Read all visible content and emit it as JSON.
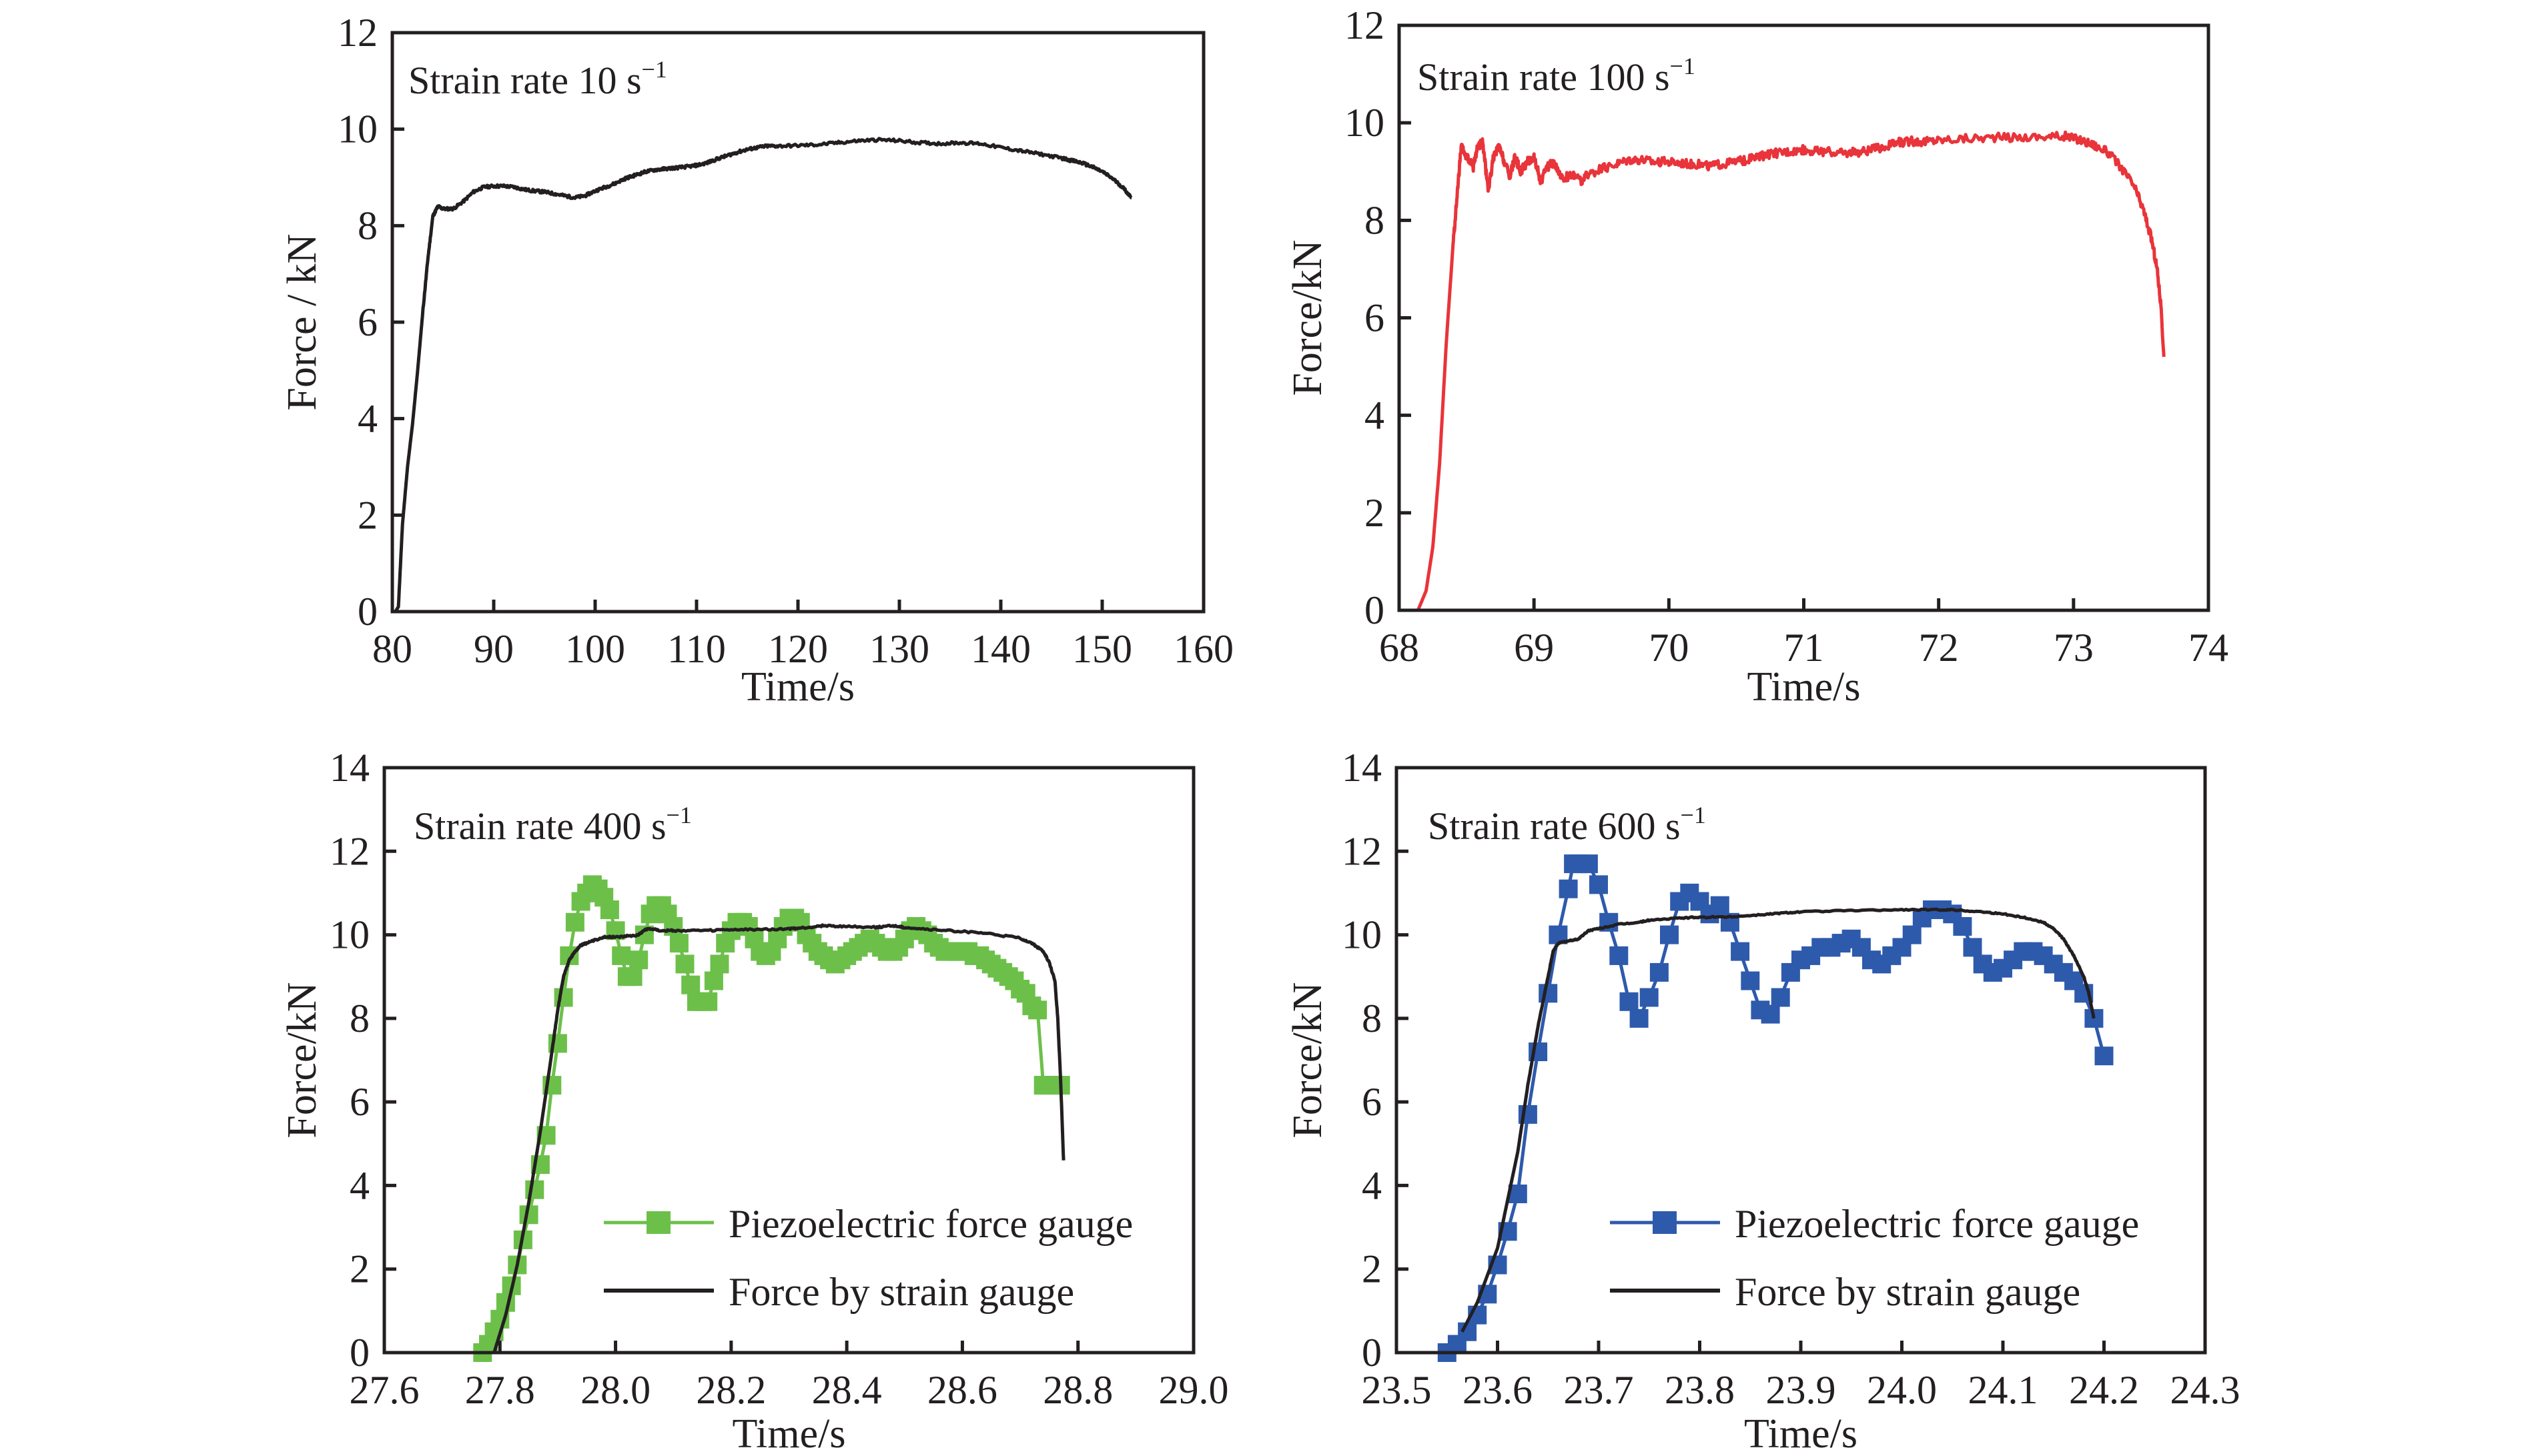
{
  "colors": {
    "axis": "#231f20",
    "black_series": "#231f20",
    "red_series": "#e8343a",
    "green_series": "#6cc04a",
    "blue_series": "#2e5aac"
  },
  "chart_data": [
    {
      "type": "line",
      "panel": "top-left",
      "annotation": "Strain rate 10 s",
      "annotation_sup": "−1",
      "xlabel": "Time/s",
      "ylabel": "Force / kN",
      "xlim": [
        80,
        160
      ],
      "ylim": [
        0,
        12
      ],
      "xticks": [
        "80",
        "90",
        "100",
        "110",
        "120",
        "130",
        "140",
        "150",
        "160"
      ],
      "xtick_values": [
        80,
        90,
        100,
        110,
        120,
        130,
        140,
        150,
        160
      ],
      "yticks": [
        "0",
        "2",
        "4",
        "6",
        "8",
        "10",
        "12"
      ],
      "ytick_values": [
        0,
        2,
        4,
        6,
        8,
        10,
        12
      ],
      "grid": false,
      "series": [
        {
          "name": "Force",
          "color": "black_series",
          "noise": 0.03,
          "x": [
            80.3,
            80.6,
            81.0,
            81.5,
            82.0,
            82.5,
            83.0,
            83.5,
            84.0,
            84.5,
            85.0,
            86.0,
            87.0,
            88.0,
            89.0,
            90.0,
            91.0,
            92.0,
            93.0,
            94.0,
            95.0,
            96.0,
            97.0,
            98.0,
            99.0,
            100.0,
            101.0,
            102.0,
            103.0,
            104.0,
            105.0,
            106.0,
            107.0,
            108.0,
            109.0,
            110.0,
            111.0,
            112.0,
            113.0,
            114.0,
            115.0,
            116.0,
            117.0,
            118.0,
            120.0,
            122.0,
            124.0,
            126.0,
            128.0,
            130.0,
            132.0,
            134.0,
            136.0,
            138.0,
            140.0,
            142.0,
            144.0,
            146.0,
            147.0,
            148.0,
            149.0,
            150.0,
            151.0,
            152.0,
            152.9
          ],
          "y": [
            0.0,
            0.1,
            1.8,
            3.0,
            3.9,
            5.0,
            6.2,
            7.3,
            8.2,
            8.4,
            8.35,
            8.35,
            8.5,
            8.7,
            8.8,
            8.82,
            8.82,
            8.8,
            8.75,
            8.72,
            8.7,
            8.66,
            8.62,
            8.58,
            8.62,
            8.72,
            8.8,
            8.88,
            8.98,
            9.05,
            9.12,
            9.16,
            9.18,
            9.2,
            9.22,
            9.25,
            9.3,
            9.38,
            9.45,
            9.52,
            9.58,
            9.62,
            9.65,
            9.65,
            9.66,
            9.68,
            9.72,
            9.76,
            9.78,
            9.76,
            9.72,
            9.7,
            9.72,
            9.7,
            9.62,
            9.55,
            9.48,
            9.4,
            9.35,
            9.3,
            9.22,
            9.12,
            8.98,
            8.8,
            8.58
          ]
        }
      ]
    },
    {
      "type": "line",
      "panel": "top-right",
      "annotation": "Strain rate 100 s",
      "annotation_sup": "−1",
      "xlabel": "Time/s",
      "ylabel": "Force/kN",
      "xlim": [
        68,
        74
      ],
      "ylim": [
        0,
        12
      ],
      "xticks": [
        "68",
        "69",
        "70",
        "71",
        "72",
        "73",
        "74"
      ],
      "xtick_values": [
        68,
        69,
        70,
        71,
        72,
        73,
        74
      ],
      "yticks": [
        "0",
        "2",
        "4",
        "6",
        "8",
        "10",
        "12"
      ],
      "ytick_values": [
        0,
        2,
        4,
        6,
        8,
        10,
        12
      ],
      "grid": false,
      "series": [
        {
          "name": "Force",
          "color": "red_series",
          "noise": 0.09,
          "x": [
            68.14,
            68.2,
            68.25,
            68.3,
            68.35,
            68.4,
            68.43,
            68.46,
            68.5,
            68.55,
            68.58,
            68.62,
            68.66,
            68.7,
            68.74,
            68.78,
            68.82,
            68.86,
            68.9,
            68.95,
            69.0,
            69.05,
            69.1,
            69.15,
            69.2,
            69.25,
            69.3,
            69.35,
            69.4,
            69.5,
            69.6,
            69.7,
            69.8,
            69.9,
            70.0,
            70.1,
            70.2,
            70.3,
            70.4,
            70.5,
            70.6,
            70.7,
            70.8,
            70.9,
            71.0,
            71.1,
            71.2,
            71.3,
            71.4,
            71.5,
            71.6,
            71.7,
            71.8,
            71.9,
            72.0,
            72.2,
            72.4,
            72.6,
            72.8,
            72.95,
            73.05,
            73.15,
            73.25,
            73.35,
            73.45,
            73.52,
            73.58,
            73.62,
            73.65,
            73.66,
            73.67
          ],
          "y": [
            0.0,
            0.4,
            1.3,
            3.0,
            5.5,
            7.5,
            8.5,
            9.5,
            9.3,
            9.1,
            9.5,
            9.6,
            8.6,
            9.3,
            9.5,
            9.2,
            8.9,
            9.3,
            9.0,
            9.2,
            9.3,
            8.8,
            9.1,
            9.2,
            8.85,
            8.9,
            8.95,
            8.8,
            8.95,
            9.05,
            9.15,
            9.25,
            9.25,
            9.2,
            9.2,
            9.18,
            9.15,
            9.12,
            9.15,
            9.2,
            9.25,
            9.32,
            9.38,
            9.42,
            9.45,
            9.42,
            9.4,
            9.38,
            9.4,
            9.45,
            9.5,
            9.6,
            9.62,
            9.62,
            9.65,
            9.68,
            9.7,
            9.7,
            9.72,
            9.72,
            9.65,
            9.55,
            9.4,
            9.1,
            8.7,
            8.2,
            7.6,
            7.0,
            6.2,
            5.6,
            5.2
          ]
        }
      ]
    },
    {
      "type": "line",
      "panel": "bottom-left",
      "annotation": "Strain rate 400 s",
      "annotation_sup": "−1",
      "xlabel": "Time/s",
      "ylabel": "Force/kN",
      "xlim": [
        27.6,
        29.0
      ],
      "ylim": [
        0,
        14
      ],
      "xticks": [
        "27.6",
        "27.8",
        "28.0",
        "28.2",
        "28.4",
        "28.6",
        "28.8",
        "29.0"
      ],
      "xtick_values": [
        27.6,
        27.8,
        28.0,
        28.2,
        28.4,
        28.6,
        28.8,
        29.0
      ],
      "yticks": [
        "0",
        "2",
        "4",
        "6",
        "8",
        "10",
        "12",
        "14"
      ],
      "ytick_values": [
        0,
        2,
        4,
        6,
        8,
        10,
        12,
        14
      ],
      "grid": false,
      "legend": {
        "position": "lower-right",
        "entries": [
          "Piezoelectric force gauge",
          "Force by strain gauge"
        ]
      },
      "series": [
        {
          "name": "Piezoelectric force gauge",
          "color": "green_series",
          "marker": "square",
          "x": [
            27.77,
            27.78,
            27.79,
            27.8,
            27.81,
            27.82,
            27.83,
            27.84,
            27.85,
            27.86,
            27.87,
            27.88,
            27.89,
            27.9,
            27.91,
            27.92,
            27.93,
            27.94,
            27.95,
            27.96,
            27.97,
            27.98,
            27.99,
            28.0,
            28.01,
            28.02,
            28.03,
            28.04,
            28.05,
            28.06,
            28.07,
            28.08,
            28.09,
            28.1,
            28.11,
            28.12,
            28.13,
            28.14,
            28.15,
            28.16,
            28.17,
            28.18,
            28.19,
            28.2,
            28.21,
            28.22,
            28.23,
            28.24,
            28.25,
            28.26,
            28.27,
            28.28,
            28.29,
            28.3,
            28.31,
            28.32,
            28.33,
            28.34,
            28.35,
            28.36,
            28.37,
            28.38,
            28.39,
            28.4,
            28.41,
            28.42,
            28.43,
            28.44,
            28.45,
            28.46,
            28.47,
            28.48,
            28.49,
            28.5,
            28.51,
            28.52,
            28.53,
            28.54,
            28.55,
            28.56,
            28.57,
            28.58,
            28.59,
            28.6,
            28.61,
            28.62,
            28.63,
            28.64,
            28.65,
            28.66,
            28.67,
            28.68,
            28.69,
            28.7,
            28.71,
            28.72,
            28.73,
            28.74,
            28.75,
            28.76,
            28.77
          ],
          "y": [
            0.0,
            0.2,
            0.5,
            0.8,
            1.2,
            1.6,
            2.1,
            2.7,
            3.3,
            3.9,
            4.5,
            5.2,
            6.4,
            7.4,
            8.5,
            9.5,
            10.3,
            10.8,
            11.0,
            11.2,
            11.1,
            10.9,
            10.6,
            10.1,
            9.5,
            9.0,
            9.0,
            9.4,
            10.0,
            10.5,
            10.7,
            10.7,
            10.5,
            10.2,
            9.8,
            9.3,
            8.8,
            8.4,
            8.4,
            8.4,
            8.9,
            9.3,
            9.8,
            10.1,
            10.3,
            10.3,
            10.2,
            9.9,
            9.6,
            9.5,
            9.6,
            9.9,
            10.2,
            10.4,
            10.4,
            10.3,
            10.0,
            9.8,
            9.6,
            9.5,
            9.4,
            9.3,
            9.4,
            9.5,
            9.6,
            9.7,
            9.8,
            9.9,
            9.8,
            9.7,
            9.6,
            9.6,
            9.7,
            9.9,
            10.1,
            10.2,
            10.1,
            10.0,
            9.8,
            9.7,
            9.6,
            9.6,
            9.6,
            9.6,
            9.6,
            9.5,
            9.5,
            9.4,
            9.3,
            9.2,
            9.1,
            9.0,
            8.9,
            8.7,
            8.6,
            8.3,
            8.2,
            6.4,
            6.4,
            6.4,
            6.4
          ]
        },
        {
          "name": "Force by strain gauge",
          "color": "black_series",
          "noise": 0.02,
          "x": [
            27.79,
            27.81,
            27.83,
            27.85,
            27.87,
            27.89,
            27.9,
            27.91,
            27.92,
            27.93,
            27.94,
            27.96,
            27.98,
            28.0,
            28.02,
            28.04,
            28.05,
            28.06,
            28.08,
            28.1,
            28.15,
            28.2,
            28.25,
            28.3,
            28.33,
            28.36,
            28.4,
            28.45,
            28.48,
            28.5,
            28.55,
            28.6,
            28.65,
            28.7,
            28.72,
            28.74,
            28.75,
            28.76,
            28.765,
            28.77,
            28.775
          ],
          "y": [
            0.0,
            0.9,
            2.1,
            3.6,
            5.3,
            7.2,
            8.2,
            9.0,
            9.4,
            9.6,
            9.75,
            9.85,
            9.95,
            9.95,
            9.97,
            10.0,
            10.12,
            10.15,
            10.1,
            10.1,
            10.1,
            10.12,
            10.13,
            10.14,
            10.17,
            10.22,
            10.2,
            10.18,
            10.22,
            10.18,
            10.12,
            10.08,
            10.02,
            9.92,
            9.8,
            9.6,
            9.35,
            8.9,
            8.0,
            6.5,
            4.6
          ]
        }
      ]
    },
    {
      "type": "line",
      "panel": "bottom-right",
      "annotation": "Strain rate 600 s",
      "annotation_sup": "−1",
      "xlabel": "Time/s",
      "ylabel": "Force/kN",
      "xlim": [
        23.5,
        24.3
      ],
      "ylim": [
        0,
        14
      ],
      "xticks": [
        "23.5",
        "23.6",
        "23.7",
        "23.8",
        "23.9",
        "24.0",
        "24.1",
        "24.2",
        "24.3"
      ],
      "xtick_values": [
        23.5,
        23.6,
        23.7,
        23.8,
        23.9,
        24.0,
        24.1,
        24.2,
        24.3
      ],
      "yticks": [
        "0",
        "2",
        "4",
        "6",
        "8",
        "10",
        "12",
        "14"
      ],
      "ytick_values": [
        0,
        2,
        4,
        6,
        8,
        10,
        12,
        14
      ],
      "grid": false,
      "legend": {
        "position": "lower-right",
        "entries": [
          "Piezoelectric force gauge",
          "Force by strain gauge"
        ]
      },
      "series": [
        {
          "name": "Piezoelectric force gauge",
          "color": "blue_series",
          "marker": "square",
          "x": [
            23.55,
            23.56,
            23.57,
            23.58,
            23.59,
            23.6,
            23.61,
            23.62,
            23.63,
            23.64,
            23.65,
            23.66,
            23.67,
            23.675,
            23.68,
            23.69,
            23.7,
            23.71,
            23.72,
            23.73,
            23.74,
            23.75,
            23.76,
            23.77,
            23.78,
            23.79,
            23.8,
            23.81,
            23.82,
            23.83,
            23.84,
            23.85,
            23.86,
            23.87,
            23.88,
            23.89,
            23.9,
            23.91,
            23.92,
            23.93,
            23.94,
            23.95,
            23.96,
            23.97,
            23.98,
            23.99,
            24.0,
            24.01,
            24.02,
            24.03,
            24.04,
            24.05,
            24.06,
            24.07,
            24.08,
            24.09,
            24.1,
            24.11,
            24.12,
            24.13,
            24.14,
            24.15,
            24.16,
            24.17,
            24.18,
            24.19,
            24.2
          ],
          "y": [
            0.0,
            0.2,
            0.5,
            0.9,
            1.4,
            2.1,
            2.9,
            3.8,
            5.7,
            7.2,
            8.6,
            10.0,
            11.1,
            11.7,
            11.7,
            11.7,
            11.2,
            10.3,
            9.5,
            8.4,
            8.0,
            8.5,
            9.1,
            10.0,
            10.8,
            11.0,
            10.8,
            10.5,
            10.7,
            10.3,
            9.6,
            8.9,
            8.2,
            8.1,
            8.5,
            9.1,
            9.4,
            9.5,
            9.7,
            9.7,
            9.8,
            9.9,
            9.7,
            9.4,
            9.3,
            9.5,
            9.7,
            10.0,
            10.4,
            10.6,
            10.6,
            10.5,
            10.2,
            9.7,
            9.3,
            9.1,
            9.2,
            9.4,
            9.6,
            9.6,
            9.5,
            9.3,
            9.1,
            8.9,
            8.6,
            8.0,
            7.1
          ]
        },
        {
          "name": "Force by strain gauge",
          "color": "black_series",
          "noise": 0.015,
          "x": [
            23.565,
            23.58,
            23.6,
            23.62,
            23.63,
            23.64,
            23.65,
            23.655,
            23.66,
            23.67,
            23.68,
            23.69,
            23.7,
            23.72,
            23.74,
            23.75,
            23.78,
            23.8,
            23.83,
            23.86,
            23.88,
            23.9,
            23.95,
            24.0,
            24.03,
            24.05,
            24.08,
            24.1,
            24.12,
            24.14,
            24.15,
            24.16,
            24.17,
            24.18,
            24.185,
            24.19
          ],
          "y": [
            0.5,
            1.2,
            2.5,
            4.8,
            6.4,
            7.8,
            9.0,
            9.6,
            9.8,
            9.85,
            9.9,
            10.1,
            10.15,
            10.25,
            10.3,
            10.35,
            10.4,
            10.42,
            10.43,
            10.48,
            10.52,
            10.55,
            10.58,
            10.6,
            10.6,
            10.6,
            10.55,
            10.5,
            10.42,
            10.3,
            10.15,
            9.9,
            9.5,
            9.0,
            8.6,
            8.0
          ]
        }
      ]
    }
  ]
}
